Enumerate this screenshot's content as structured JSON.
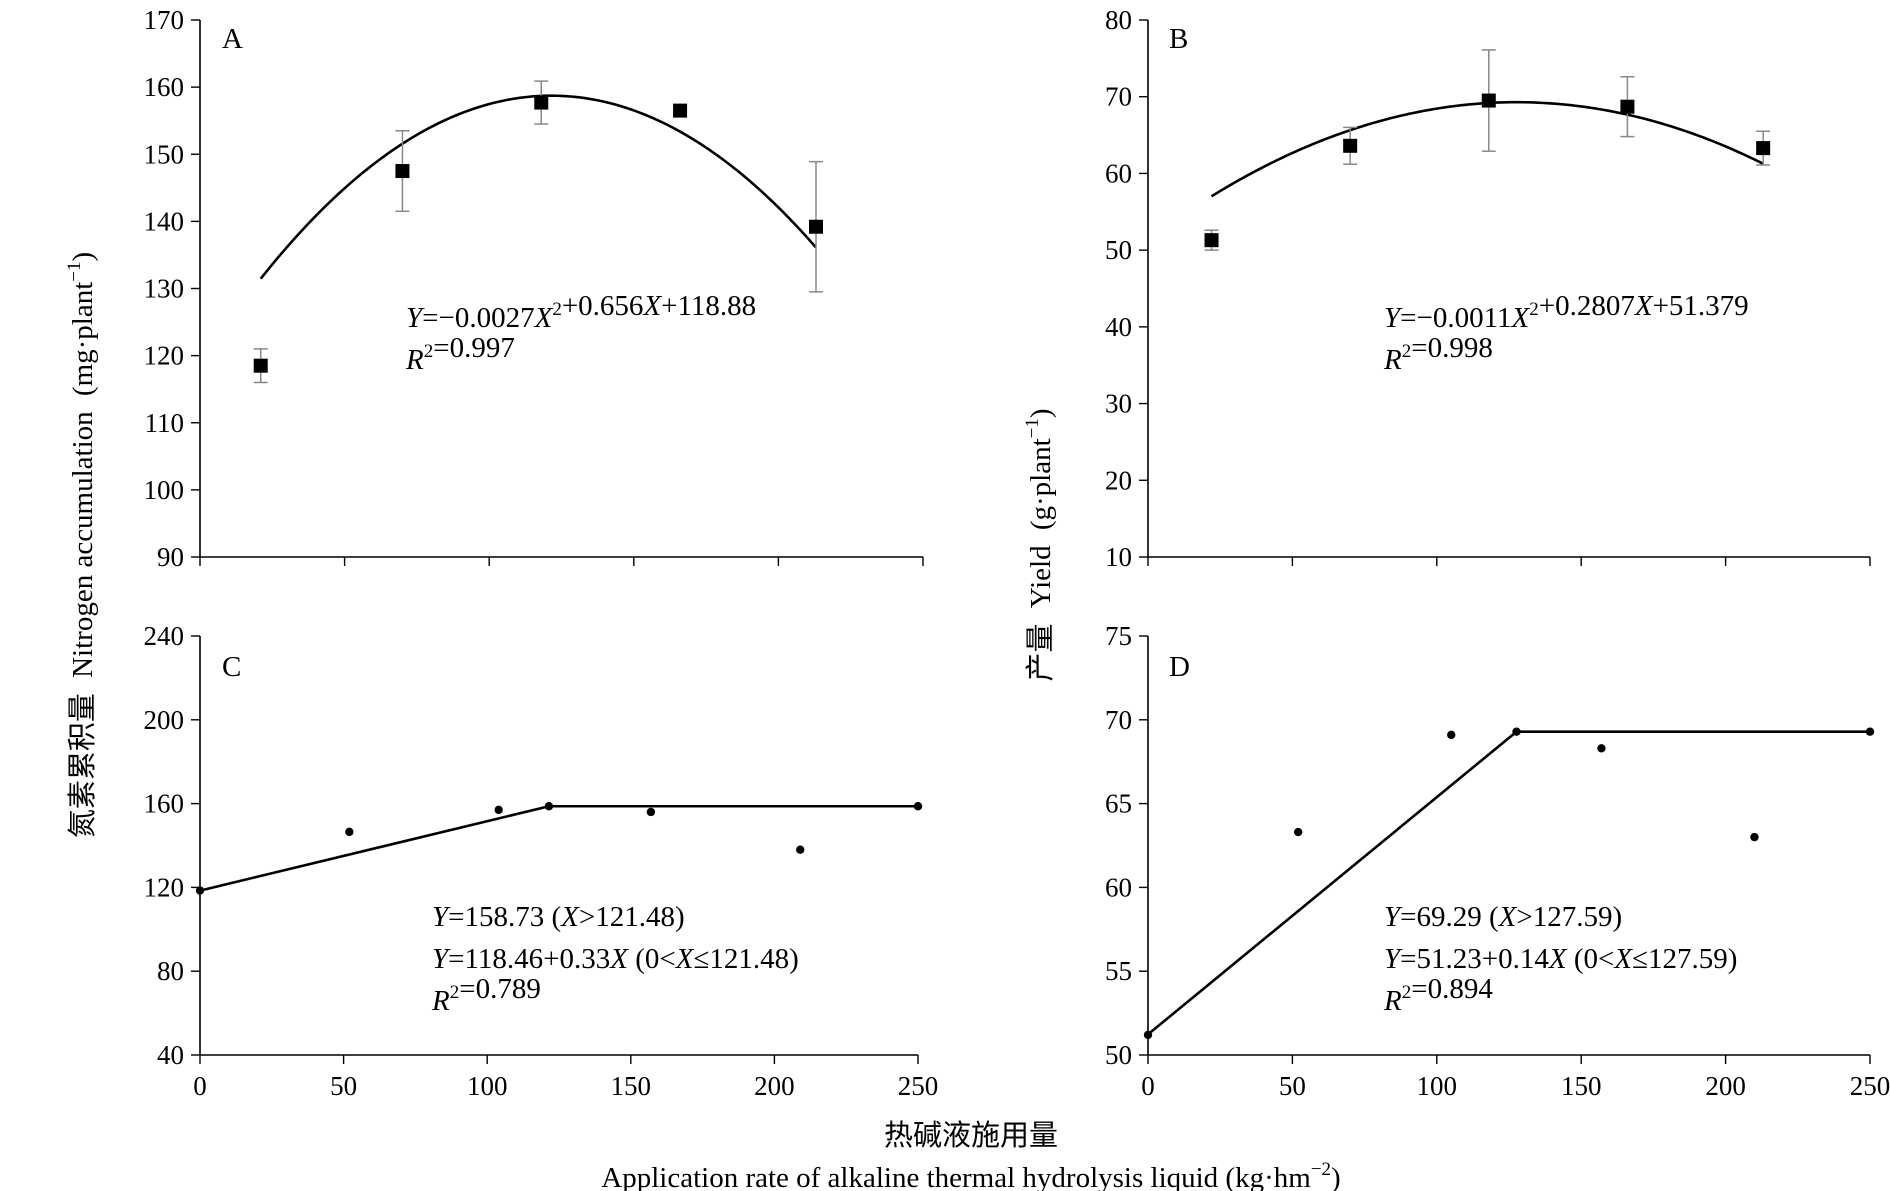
{
  "y_label_left": {
    "cn": "氮素累积量",
    "en": "Nitrogen accumulation",
    "unit_base": "(mg·plant",
    "unit_sup": "−1",
    "unit_end": ")"
  },
  "y_label_right": {
    "cn": "产量",
    "en": "Yield",
    "unit_base": "(g·plant",
    "unit_sup": "−1",
    "unit_end": ")"
  },
  "x_label": {
    "cn": "热碱液施用量",
    "en": "Application rate of alkaline thermal hydrolysis liquid (kg·hm",
    "unit_sup": "−2",
    "unit_end": ")"
  },
  "chart_data": [
    {
      "panel": "A",
      "type": "scatter",
      "xlim": [
        0,
        250
      ],
      "ylim": [
        90,
        170
      ],
      "yticks": [
        90,
        100,
        110,
        120,
        130,
        140,
        150,
        160,
        170
      ],
      "x": [
        21,
        70,
        118,
        166,
        213
      ],
      "y": [
        118.5,
        147.5,
        157.7,
        156.5,
        139.2
      ],
      "error": [
        2.5,
        6.0,
        3.2,
        0.5,
        9.7
      ],
      "fit": {
        "a": -0.0027,
        "b": 0.656,
        "c": 118.88
      },
      "equation": "Y=−0.0027X²+0.656X+118.88",
      "r2": "R²=0.997"
    },
    {
      "panel": "B",
      "type": "scatter",
      "xlim": [
        0,
        250
      ],
      "ylim": [
        10,
        80
      ],
      "yticks": [
        10,
        20,
        30,
        40,
        50,
        60,
        70,
        80
      ],
      "x": [
        22,
        70,
        118,
        166,
        213
      ],
      "y": [
        51.3,
        63.6,
        69.5,
        68.7,
        63.3
      ],
      "error": [
        1.3,
        2.4,
        6.6,
        3.9,
        2.2
      ],
      "fit": {
        "a": -0.0011,
        "b": 0.2807,
        "c": 51.379
      },
      "equation": "Y=−0.0011X²+0.2807X+51.379",
      "r2": "R²=0.998"
    },
    {
      "panel": "C",
      "type": "line",
      "xlim": [
        0,
        250
      ],
      "ylim": [
        40,
        240
      ],
      "xticks": [
        0,
        50,
        100,
        150,
        200,
        250
      ],
      "yticks": [
        40,
        80,
        120,
        160,
        200,
        240
      ],
      "x": [
        0,
        52,
        104,
        121.48,
        157,
        209,
        250
      ],
      "y": [
        118.5,
        146.5,
        157,
        158.73,
        156,
        138,
        158.73
      ],
      "fit_line": {
        "x": [
          0,
          121.48,
          250
        ],
        "y": [
          118.46,
          158.73,
          158.73
        ]
      },
      "equations": [
        "Y=158.73 (X>121.48)",
        "Y=118.46+0.33X (0<X≤121.48)",
        "R²=0.789"
      ]
    },
    {
      "panel": "D",
      "type": "line",
      "xlim": [
        0,
        250
      ],
      "ylim": [
        50,
        75
      ],
      "xticks": [
        0,
        50,
        100,
        150,
        200,
        250
      ],
      "yticks": [
        50,
        55,
        60,
        65,
        70,
        75
      ],
      "x": [
        0,
        52,
        105,
        127.59,
        157,
        210,
        250
      ],
      "y": [
        51.2,
        63.3,
        69.1,
        69.29,
        68.3,
        63.0,
        69.29
      ],
      "fit_line": {
        "x": [
          0,
          127.59,
          250
        ],
        "y": [
          51.23,
          69.29,
          69.29
        ]
      },
      "equations": [
        "Y=69.29 (X>127.59)",
        "Y=51.23+0.14X (0<X≤127.59)",
        "R²=0.894"
      ]
    }
  ]
}
